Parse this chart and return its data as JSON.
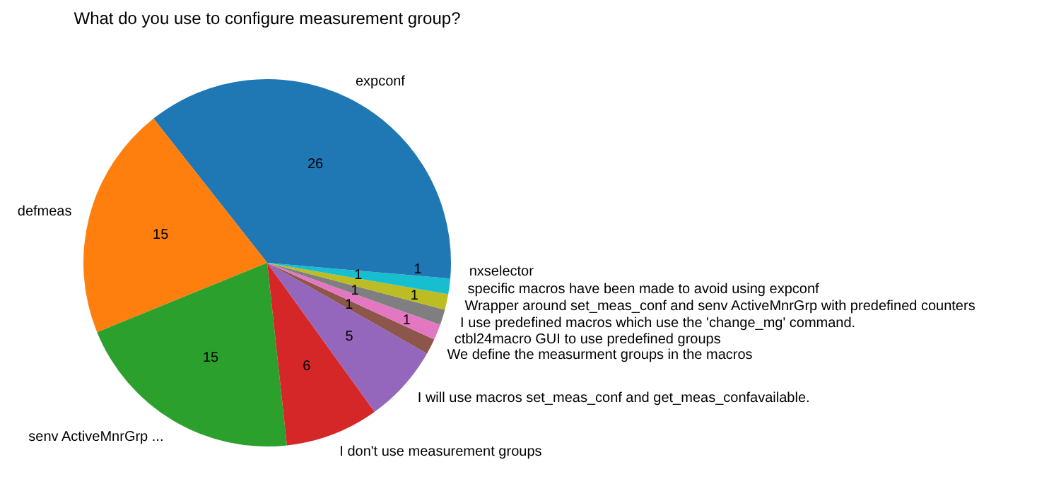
{
  "chart_data": {
    "type": "pie",
    "title": "What do you use to configure measurement group?",
    "categories": [
      "expconf",
      "defmeas",
      "senv ActiveMnrGrp ...",
      "I don't use measurement groups",
      "I will use macros set_meas_conf and get_meas_confavailable.",
      "We define the measurment groups in the macros",
      "ctbl24macro GUI to use predefined groups",
      "I use predefined macros which use the 'change_mg' command.",
      "Wrapper around set_meas_conf and senv ActiveMnrGrp with predefined counters",
      "specific macros have been made to avoid using expconf",
      "nxselector"
    ],
    "values": [
      26,
      15,
      15,
      6,
      5,
      1,
      1,
      1,
      1,
      1,
      1
    ],
    "colors": [
      "#1f77b4",
      "#ff7f0e",
      "#2ca02c",
      "#d62728",
      "#9467bd",
      "#8c564b",
      "#e377c2",
      "#7f7f7f",
      "#bcbd22",
      "#17becf",
      "#1f77b4"
    ],
    "data_labels": true
  }
}
